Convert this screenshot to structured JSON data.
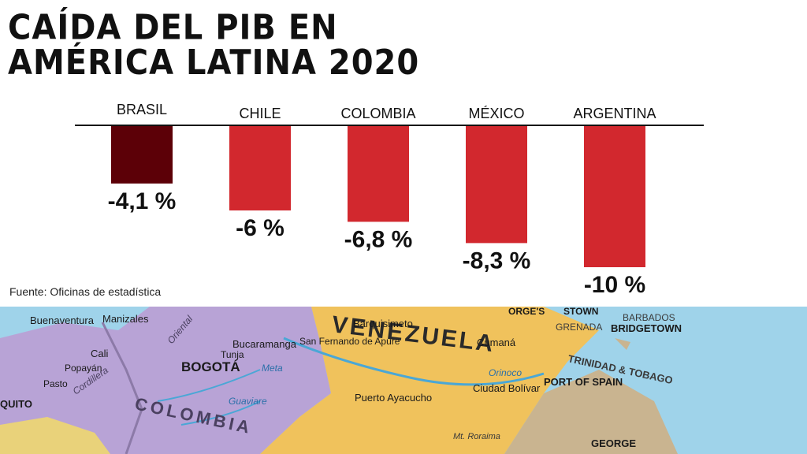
{
  "title": {
    "line1": "CAÍDA DEL PIB EN",
    "line2": "AMÉRICA LATINA 2020"
  },
  "source": "Fuente: Oficinas de estadística",
  "colors": {
    "highlight": "#5c0007",
    "bar": "#d2282e",
    "axis": "#111111",
    "text": "#111111"
  },
  "chart_data": {
    "type": "bar",
    "orientation": "vertical-downward",
    "categories": [
      "BRASIL",
      "CHILE",
      "COLOMBIA",
      "MÉXICO",
      "ARGENTINA"
    ],
    "values": [
      -4.1,
      -6,
      -6.8,
      -8.3,
      -10
    ],
    "labels": [
      "-4,1 %",
      "-6 %",
      "-6,8 %",
      "-8,3 %",
      "-10 %"
    ],
    "unit": "%",
    "ylim": [
      -10,
      0
    ],
    "grid": false,
    "legend": "none",
    "highlight_index": 0
  },
  "map_labels": {
    "venezuela": "VENEZUELA",
    "colombia": "COLOMBIA",
    "bogota": "BOGOTÁ",
    "bucaramanga": "Bucaramanga",
    "barquisimeto": "Barquisimeto",
    "cumana": "Cumaná",
    "ciudad_bolivar": "Ciudad Bolívar",
    "puerto_ayacucho": "Puerto Ayacucho",
    "san_fernando": "San Fernando de Apure",
    "tunja": "Tunja",
    "cali": "Cali",
    "popayan": "Popayán",
    "pasto": "Pasto",
    "manizales": "Manizales",
    "buenaventura": "Buenaventura",
    "quito": "QUITO",
    "port_of_spain": "PORT OF SPAIN",
    "trinidad": "TRINIDAD & TOBAGO",
    "bridgetown": "BRIDGETOWN",
    "barbados": "BARBADOS",
    "grenada": "GRENADA",
    "kingstown": "STOWN",
    "georges": "ORGE'S",
    "georgetown": "GEORGE",
    "orinoco": "Orinoco",
    "meta": "Meta",
    "guaviare": "Guaviare",
    "cordillera": "Cordillera",
    "oriental": "Oriental",
    "roraima": "Mt. Roraima"
  }
}
